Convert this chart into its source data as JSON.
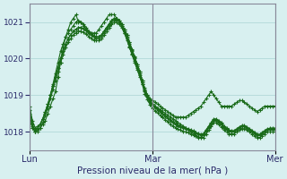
{
  "title": "Pression niveau de la mer( hPa )",
  "bg_color": "#d8f0f0",
  "grid_color": "#aad4d4",
  "line_color": "#1a6b1a",
  "ylim": [
    1017.5,
    1021.5
  ],
  "yticks": [
    1018,
    1019,
    1020,
    1021
  ],
  "xtick_labels": [
    "Lun",
    "Mar",
    "Mer"
  ],
  "xtick_positions": [
    0,
    48,
    96
  ],
  "series": [
    [
      1018.7,
      1018.1,
      1018.0,
      1018.0,
      1018.1,
      1018.2,
      1018.3,
      1018.5,
      1018.7,
      1018.9,
      1019.1,
      1019.5,
      1019.9,
      1020.3,
      1020.6,
      1020.8,
      1021.0,
      1021.1,
      1021.2,
      1021.0,
      1021.0,
      1020.9,
      1020.8,
      1020.7,
      1020.7,
      1020.7,
      1020.7,
      1020.8,
      1020.9,
      1021.0,
      1021.1,
      1021.2,
      1021.2,
      1021.2,
      1021.1,
      1021.0,
      1020.9,
      1020.7,
      1020.5,
      1020.3,
      1020.1,
      1019.9,
      1019.7,
      1019.5,
      1019.3,
      1019.2,
      1019.0,
      1018.9,
      1018.85,
      1018.8,
      1018.75,
      1018.7,
      1018.65,
      1018.6,
      1018.55,
      1018.5,
      1018.45,
      1018.4,
      1018.4,
      1018.4,
      1018.4,
      1018.4,
      1018.45,
      1018.5,
      1018.55,
      1018.6,
      1018.65,
      1018.7,
      1018.8,
      1018.9,
      1019.0,
      1019.1,
      1019.0,
      1018.9,
      1018.8,
      1018.7,
      1018.7,
      1018.7,
      1018.7,
      1018.7,
      1018.75,
      1018.8,
      1018.85,
      1018.85,
      1018.8,
      1018.75,
      1018.7,
      1018.65,
      1018.6,
      1018.55,
      1018.6,
      1018.65,
      1018.7,
      1018.7,
      1018.7,
      1018.7,
      1018.7
    ],
    [
      1018.5,
      1018.2,
      1018.0,
      1018.1,
      1018.2,
      1018.35,
      1018.5,
      1018.7,
      1019.0,
      1019.3,
      1019.6,
      1019.9,
      1020.2,
      1020.4,
      1020.6,
      1020.7,
      1020.8,
      1020.9,
      1021.0,
      1021.05,
      1021.0,
      1020.95,
      1020.85,
      1020.75,
      1020.65,
      1020.6,
      1020.55,
      1020.55,
      1020.6,
      1020.7,
      1020.8,
      1020.9,
      1021.0,
      1021.05,
      1021.05,
      1021.0,
      1020.9,
      1020.75,
      1020.6,
      1020.4,
      1020.2,
      1020.0,
      1019.8,
      1019.6,
      1019.35,
      1019.1,
      1018.95,
      1018.8,
      1018.75,
      1018.7,
      1018.65,
      1018.6,
      1018.55,
      1018.5,
      1018.45,
      1018.4,
      1018.35,
      1018.3,
      1018.25,
      1018.2,
      1018.15,
      1018.1,
      1018.05,
      1018.0,
      1017.95,
      1017.9,
      1017.85,
      1017.85,
      1017.9,
      1018.0,
      1018.1,
      1018.2,
      1018.3,
      1018.3,
      1018.25,
      1018.2,
      1018.1,
      1018.05,
      1018.0,
      1018.0,
      1018.0,
      1018.05,
      1018.1,
      1018.15,
      1018.15,
      1018.1,
      1018.05,
      1018.0,
      1017.95,
      1017.9,
      1017.9,
      1017.95,
      1018.0,
      1018.05,
      1018.1,
      1018.1,
      1018.1
    ],
    [
      1018.6,
      1018.3,
      1018.1,
      1018.15,
      1018.2,
      1018.35,
      1018.55,
      1018.75,
      1019.0,
      1019.25,
      1019.5,
      1019.75,
      1020.0,
      1020.2,
      1020.4,
      1020.55,
      1020.65,
      1020.75,
      1020.8,
      1020.85,
      1020.85,
      1020.82,
      1020.78,
      1020.72,
      1020.66,
      1020.62,
      1020.6,
      1020.6,
      1020.65,
      1020.75,
      1020.85,
      1020.95,
      1021.05,
      1021.1,
      1021.1,
      1021.05,
      1020.95,
      1020.8,
      1020.65,
      1020.45,
      1020.25,
      1020.05,
      1019.85,
      1019.65,
      1019.4,
      1019.15,
      1019.0,
      1018.85,
      1018.75,
      1018.68,
      1018.62,
      1018.56,
      1018.5,
      1018.44,
      1018.38,
      1018.32,
      1018.27,
      1018.22,
      1018.18,
      1018.15,
      1018.12,
      1018.1,
      1018.08,
      1018.05,
      1018.02,
      1017.98,
      1017.95,
      1017.93,
      1017.95,
      1018.05,
      1018.15,
      1018.25,
      1018.35,
      1018.35,
      1018.3,
      1018.24,
      1018.15,
      1018.1,
      1018.05,
      1018.0,
      1018.0,
      1018.05,
      1018.1,
      1018.14,
      1018.14,
      1018.1,
      1018.05,
      1018.0,
      1017.95,
      1017.9,
      1017.9,
      1017.95,
      1018.0,
      1018.05,
      1018.05,
      1018.05,
      1018.05
    ],
    [
      1018.4,
      1018.15,
      1018.0,
      1018.05,
      1018.1,
      1018.25,
      1018.45,
      1018.65,
      1018.9,
      1019.15,
      1019.4,
      1019.65,
      1019.9,
      1020.1,
      1020.3,
      1020.45,
      1020.55,
      1020.65,
      1020.7,
      1020.75,
      1020.75,
      1020.72,
      1020.67,
      1020.61,
      1020.55,
      1020.51,
      1020.49,
      1020.49,
      1020.54,
      1020.64,
      1020.74,
      1020.84,
      1020.94,
      1020.99,
      1020.99,
      1020.94,
      1020.84,
      1020.69,
      1020.54,
      1020.34,
      1020.14,
      1019.94,
      1019.74,
      1019.54,
      1019.29,
      1019.04,
      1018.89,
      1018.74,
      1018.64,
      1018.57,
      1018.51,
      1018.45,
      1018.39,
      1018.33,
      1018.27,
      1018.21,
      1018.16,
      1018.11,
      1018.07,
      1018.04,
      1018.01,
      1017.99,
      1017.97,
      1017.94,
      1017.91,
      1017.87,
      1017.84,
      1017.82,
      1017.84,
      1017.94,
      1018.04,
      1018.14,
      1018.24,
      1018.24,
      1018.19,
      1018.13,
      1018.04,
      1017.99,
      1017.94,
      1017.94,
      1017.94,
      1017.99,
      1018.04,
      1018.08,
      1018.08,
      1018.04,
      1017.99,
      1017.94,
      1017.89,
      1017.84,
      1017.84,
      1017.89,
      1017.94,
      1017.99,
      1017.99,
      1017.99,
      1017.99
    ],
    [
      1018.3,
      1018.1,
      1018.0,
      1018.1,
      1018.2,
      1018.35,
      1018.55,
      1018.75,
      1019.0,
      1019.25,
      1019.5,
      1019.75,
      1020.0,
      1020.2,
      1020.4,
      1020.55,
      1020.65,
      1020.75,
      1020.8,
      1020.85,
      1020.85,
      1020.82,
      1020.77,
      1020.71,
      1020.65,
      1020.61,
      1020.59,
      1020.59,
      1020.64,
      1020.74,
      1020.84,
      1020.94,
      1021.04,
      1021.09,
      1021.09,
      1021.04,
      1020.94,
      1020.79,
      1020.64,
      1020.44,
      1020.24,
      1020.04,
      1019.84,
      1019.64,
      1019.39,
      1019.14,
      1018.99,
      1018.84,
      1018.73,
      1018.66,
      1018.6,
      1018.54,
      1018.48,
      1018.42,
      1018.36,
      1018.3,
      1018.25,
      1018.2,
      1018.16,
      1018.13,
      1018.1,
      1018.08,
      1018.06,
      1018.03,
      1018.0,
      1017.96,
      1017.93,
      1017.91,
      1017.93,
      1018.03,
      1018.13,
      1018.23,
      1018.33,
      1018.33,
      1018.28,
      1018.22,
      1018.13,
      1018.08,
      1018.03,
      1018.03,
      1018.03,
      1018.08,
      1018.13,
      1018.17,
      1018.17,
      1018.13,
      1018.08,
      1018.03,
      1017.98,
      1017.93,
      1017.93,
      1017.98,
      1018.03,
      1018.08,
      1018.08,
      1018.08,
      1018.08
    ]
  ]
}
